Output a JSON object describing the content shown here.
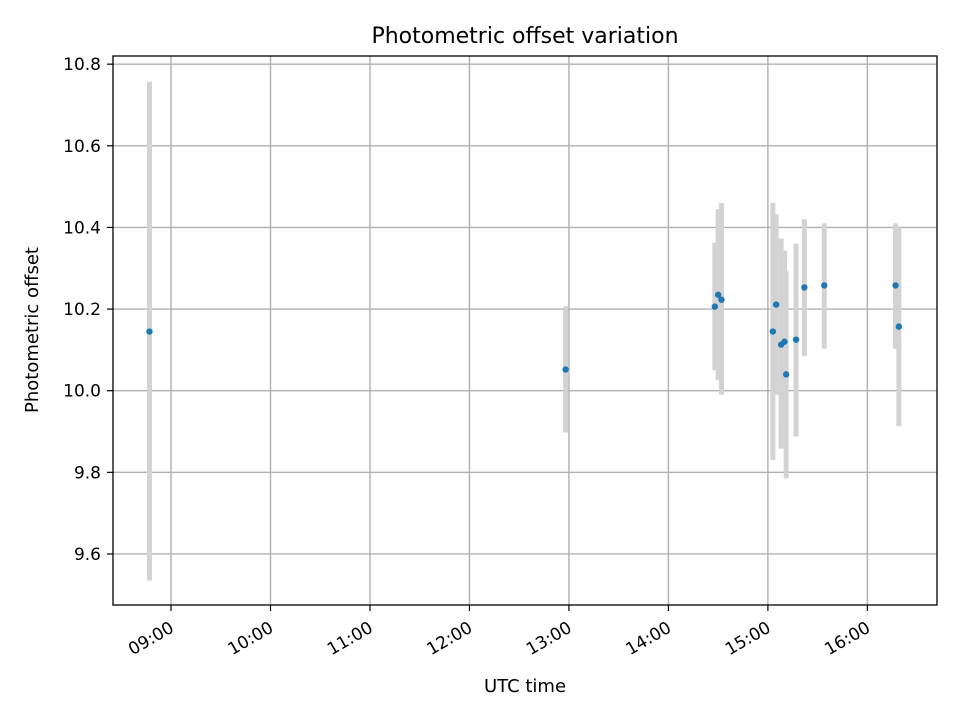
{
  "chart_data": {
    "type": "scatter",
    "title": "Photometric offset variation",
    "xlabel": "UTC time",
    "ylabel": "Photometric offset",
    "grid": true,
    "x_is_time": true,
    "xlim": [
      "08:25",
      "16:42"
    ],
    "ylim": [
      9.475,
      10.82
    ],
    "xticks": [
      "09:00",
      "10:00",
      "11:00",
      "12:00",
      "13:00",
      "14:00",
      "15:00",
      "16:00"
    ],
    "yticks": [
      "9.6",
      "9.8",
      "10.0",
      "10.2",
      "10.4",
      "10.6",
      "10.8"
    ],
    "point_color": "#1f77b4",
    "errorbar_color": "#d3d3d3",
    "points": [
      {
        "x": "08:47",
        "y": 10.145,
        "err_low": 9.535,
        "err_high": 10.757
      },
      {
        "x": "12:58",
        "y": 10.052,
        "err_low": 9.898,
        "err_high": 10.207
      },
      {
        "x": "14:28",
        "y": 10.206,
        "err_low": 10.05,
        "err_high": 10.363
      },
      {
        "x": "14:30",
        "y": 10.235,
        "err_low": 10.026,
        "err_high": 10.445
      },
      {
        "x": "14:32",
        "y": 10.223,
        "err_low": 9.99,
        "err_high": 10.46
      },
      {
        "x": "15:03",
        "y": 10.145,
        "err_low": 9.83,
        "err_high": 10.46
      },
      {
        "x": "15:05",
        "y": 10.211,
        "err_low": 9.99,
        "err_high": 10.432
      },
      {
        "x": "15:08",
        "y": 10.113,
        "err_low": 9.858,
        "err_high": 10.373
      },
      {
        "x": "15:10",
        "y": 10.12,
        "err_low": 9.905,
        "err_high": 10.343
      },
      {
        "x": "15:11",
        "y": 10.04,
        "err_low": 9.785,
        "err_high": 10.293
      },
      {
        "x": "15:17",
        "y": 10.125,
        "err_low": 9.888,
        "err_high": 10.36
      },
      {
        "x": "15:22",
        "y": 10.253,
        "err_low": 10.085,
        "err_high": 10.42
      },
      {
        "x": "15:34",
        "y": 10.258,
        "err_low": 10.103,
        "err_high": 10.41
      },
      {
        "x": "16:17",
        "y": 10.258,
        "err_low": 10.103,
        "err_high": 10.41
      },
      {
        "x": "16:19",
        "y": 10.157,
        "err_low": 9.913,
        "err_high": 10.4
      }
    ]
  }
}
